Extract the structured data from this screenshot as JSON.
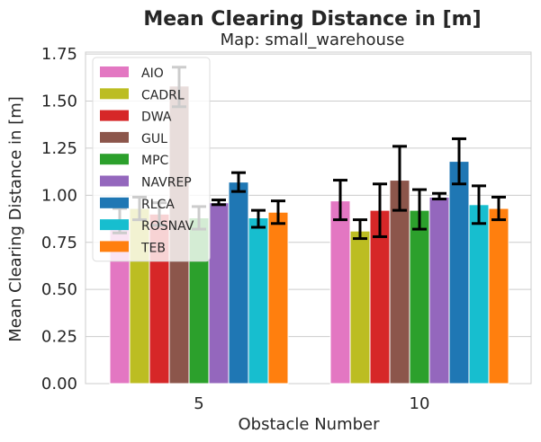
{
  "chart_data": {
    "type": "bar",
    "title": "Mean Clearing Distance in [m]",
    "subtitle": "Map: small_warehouse",
    "xlabel": "Obstacle Number",
    "ylabel": "Mean Clearing Distance in [m]",
    "categories": [
      "5",
      "10"
    ],
    "ylim": [
      0,
      1.76
    ],
    "yticks": [
      "0.00",
      "0.25",
      "0.50",
      "0.75",
      "1.00",
      "1.25",
      "1.50",
      "1.75"
    ],
    "grid": true,
    "legend_position": "top-left",
    "series": [
      {
        "name": "AIO",
        "color": "#e377c2",
        "values": [
          0.86,
          0.97
        ],
        "err_low": [
          0.8,
          0.87
        ],
        "err_high": [
          0.93,
          1.08
        ]
      },
      {
        "name": "CADRL",
        "color": "#bcbd22",
        "values": [
          0.93,
          0.81
        ],
        "err_low": [
          0.87,
          0.77
        ],
        "err_high": [
          0.99,
          0.87
        ]
      },
      {
        "name": "DWA",
        "color": "#d62728",
        "values": [
          0.9,
          0.92
        ],
        "err_low": [
          0.84,
          0.78
        ],
        "err_high": [
          0.96,
          1.06
        ]
      },
      {
        "name": "GUL",
        "color": "#8c564b",
        "values": [
          1.58,
          1.08
        ],
        "err_low": [
          1.47,
          0.92
        ],
        "err_high": [
          1.68,
          1.26
        ]
      },
      {
        "name": "MPC",
        "color": "#2ca02c",
        "values": [
          0.88,
          0.92
        ],
        "err_low": [
          0.82,
          0.82
        ],
        "err_high": [
          0.94,
          1.03
        ]
      },
      {
        "name": "NAVREP",
        "color": "#9467bd",
        "values": [
          0.96,
          0.99
        ],
        "err_low": [
          0.95,
          0.98
        ],
        "err_high": [
          0.975,
          1.01
        ]
      },
      {
        "name": "RLCA",
        "color": "#1f77b4",
        "values": [
          1.07,
          1.18
        ],
        "err_low": [
          1.02,
          1.06
        ],
        "err_high": [
          1.12,
          1.3
        ]
      },
      {
        "name": "ROSNAV",
        "color": "#17becf",
        "values": [
          0.88,
          0.95
        ],
        "err_low": [
          0.83,
          0.85
        ],
        "err_high": [
          0.92,
          1.05
        ]
      },
      {
        "name": "TEB",
        "color": "#ff7f0e",
        "values": [
          0.91,
          0.93
        ],
        "err_low": [
          0.85,
          0.87
        ],
        "err_high": [
          0.97,
          0.99
        ]
      }
    ]
  }
}
